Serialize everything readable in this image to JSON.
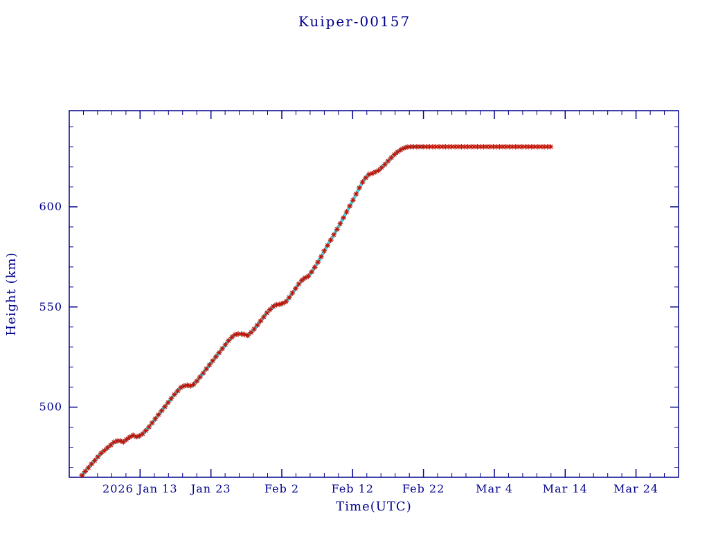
{
  "page": {
    "background": "#ffffff",
    "axis_color": "#00008B"
  },
  "chart_data": {
    "type": "line",
    "title": "Kuiper-00157",
    "xlabel": "Time(UTC)",
    "ylabel": "Height (km)",
    "axis_color": "#00008B",
    "x_axis": {
      "lim_days": [
        3,
        89
      ],
      "major_ticks": [
        {
          "day": 13,
          "label": "2026 Jan 13"
        },
        {
          "day": 23,
          "label": "Jan 23"
        },
        {
          "day": 33,
          "label": "Feb 2"
        },
        {
          "day": 43,
          "label": "Feb 12"
        },
        {
          "day": 53,
          "label": "Feb 22"
        },
        {
          "day": 63,
          "label": "Mar 4"
        },
        {
          "day": 73,
          "label": "Mar 14"
        },
        {
          "day": 83,
          "label": "Mar 24"
        }
      ],
      "minor_step_days": 2
    },
    "y_axis": {
      "lim": [
        465,
        648
      ],
      "major_ticks": [
        500,
        550,
        600
      ],
      "minor_step": 10
    },
    "series": [
      {
        "name": "smoothed-track",
        "style": "thick-line",
        "color": "#3FD8EA",
        "width": 4.5,
        "end_day": 53
      },
      {
        "name": "measured-points",
        "style": "asterisk-markers",
        "color": "#C41204",
        "line_width": 1,
        "marker_interval_days": 0.45,
        "marker_size": 4
      }
    ],
    "points": [
      [
        4.8,
        466
      ],
      [
        5.5,
        469
      ],
      [
        6.5,
        473
      ],
      [
        7.5,
        477
      ],
      [
        8.5,
        480
      ],
      [
        9.3,
        482.5
      ],
      [
        10.0,
        483.5
      ],
      [
        10.6,
        482.5
      ],
      [
        11.3,
        484.5
      ],
      [
        12.0,
        486
      ],
      [
        12.6,
        485
      ],
      [
        13.3,
        486.5
      ],
      [
        14.0,
        489
      ],
      [
        15.0,
        493.5
      ],
      [
        16.0,
        498
      ],
      [
        17.0,
        502.5
      ],
      [
        18.0,
        507
      ],
      [
        18.8,
        510
      ],
      [
        19.5,
        511
      ],
      [
        20.3,
        510.5
      ],
      [
        21.0,
        513
      ],
      [
        22.0,
        517.5
      ],
      [
        23.0,
        522
      ],
      [
        24.0,
        526.5
      ],
      [
        25.0,
        531
      ],
      [
        25.8,
        534.5
      ],
      [
        26.5,
        536.5
      ],
      [
        27.5,
        536.5
      ],
      [
        28.2,
        535.8
      ],
      [
        29.0,
        538.5
      ],
      [
        30.0,
        543
      ],
      [
        31.0,
        547.5
      ],
      [
        32.0,
        551
      ],
      [
        33.0,
        551.5
      ],
      [
        33.7,
        553
      ],
      [
        34.5,
        557
      ],
      [
        35.3,
        561
      ],
      [
        36.0,
        564
      ],
      [
        36.8,
        565.5
      ],
      [
        37.5,
        569
      ],
      [
        38.3,
        573.5
      ],
      [
        39.0,
        578
      ],
      [
        40.0,
        584
      ],
      [
        41.0,
        590
      ],
      [
        42.0,
        596.5
      ],
      [
        43.0,
        603
      ],
      [
        43.8,
        608.5
      ],
      [
        44.5,
        613
      ],
      [
        45.2,
        616
      ],
      [
        46.0,
        617
      ],
      [
        46.8,
        618.5
      ],
      [
        47.5,
        621
      ],
      [
        48.3,
        624
      ],
      [
        49.0,
        626.5
      ],
      [
        49.8,
        628.5
      ],
      [
        50.5,
        629.8
      ],
      [
        51.3,
        630
      ],
      [
        53.0,
        630
      ],
      [
        57.0,
        630
      ],
      [
        61.0,
        630
      ],
      [
        65.0,
        630
      ],
      [
        68.0,
        630
      ],
      [
        71.0,
        630
      ]
    ]
  }
}
